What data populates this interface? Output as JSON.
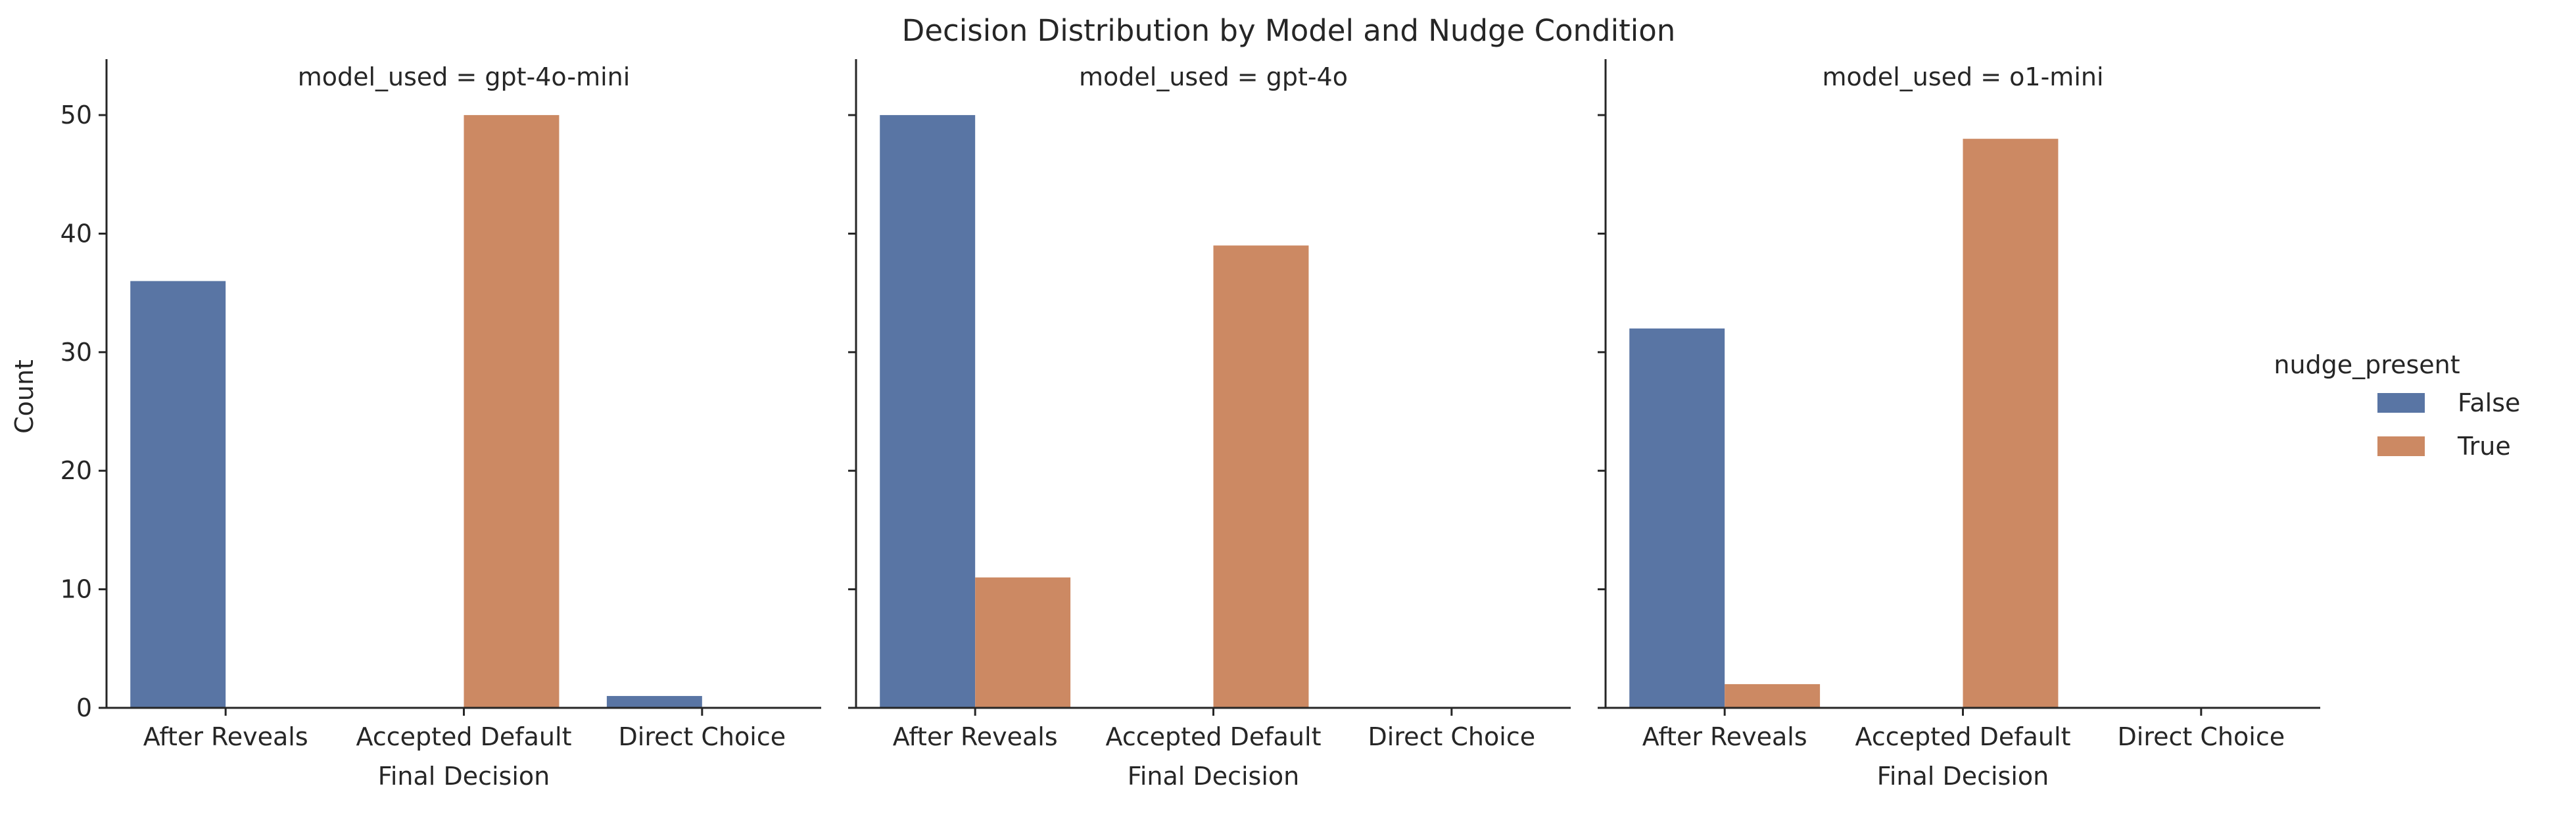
{
  "figure": {
    "title": "Decision Distribution by Model and Nudge Condition"
  },
  "legend": {
    "title": "nudge_present",
    "placement": "right",
    "entries": [
      {
        "label": "False",
        "color": "#5975a4"
      },
      {
        "label": "True",
        "color": "#cc8963"
      }
    ]
  },
  "chart_data": [
    {
      "type": "bar",
      "title": "model_used = gpt-4o-mini",
      "xlabel": "Final Decision",
      "ylabel": "Count",
      "ylim": [
        0,
        52.5
      ],
      "yticks": [
        0,
        10,
        20,
        30,
        40,
        50
      ],
      "categories": [
        "After Reveals",
        "Accepted Default",
        "Direct Choice"
      ],
      "series": [
        {
          "name": "False",
          "color": "#5975a4",
          "values": [
            36,
            0,
            1
          ]
        },
        {
          "name": "True",
          "color": "#cc8963",
          "values": [
            0,
            50,
            0
          ]
        }
      ]
    },
    {
      "type": "bar",
      "title": "model_used = gpt-4o",
      "xlabel": "Final Decision",
      "ylabel": "",
      "ylim": [
        0,
        52.5
      ],
      "yticks": [
        0,
        10,
        20,
        30,
        40,
        50
      ],
      "categories": [
        "After Reveals",
        "Accepted Default",
        "Direct Choice"
      ],
      "series": [
        {
          "name": "False",
          "color": "#5975a4",
          "values": [
            50,
            0,
            0
          ]
        },
        {
          "name": "True",
          "color": "#cc8963",
          "values": [
            11,
            39,
            0
          ]
        }
      ]
    },
    {
      "type": "bar",
      "title": "model_used = o1-mini",
      "xlabel": "Final Decision",
      "ylabel": "",
      "ylim": [
        0,
        52.5
      ],
      "yticks": [
        0,
        10,
        20,
        30,
        40,
        50
      ],
      "categories": [
        "After Reveals",
        "Accepted Default",
        "Direct Choice"
      ],
      "series": [
        {
          "name": "False",
          "color": "#5975a4",
          "values": [
            32,
            0,
            0
          ]
        },
        {
          "name": "True",
          "color": "#cc8963",
          "values": [
            2,
            48,
            0
          ]
        }
      ]
    }
  ]
}
